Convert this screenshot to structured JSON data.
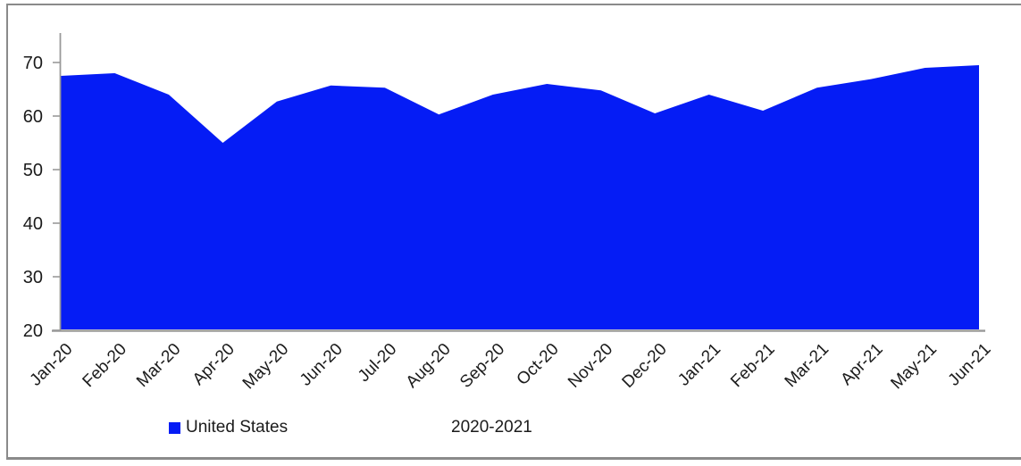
{
  "figure": {
    "background": "#ffffff",
    "border_color": "#8a8a8a"
  },
  "chart_data": {
    "type": "area",
    "title": "",
    "xlabel": "",
    "ylabel": "",
    "categories": [
      "Jan-20",
      "Feb-20",
      "Mar-20",
      "Apr-20",
      "May-20",
      "Jun-20",
      "Jul-20",
      "Aug-20",
      "Sep-20",
      "Oct-20",
      "Nov-20",
      "Dec-20",
      "Jan-21",
      "Feb-21",
      "Mar-21",
      "Apr-21",
      "May-21",
      "Jun-21"
    ],
    "series": [
      {
        "name": "United States",
        "values": [
          67.5,
          68,
          64,
          55,
          62.7,
          65.7,
          65.3,
          60.3,
          64,
          66,
          64.8,
          60.5,
          64,
          61,
          65.3,
          66.9,
          69,
          69.5
        ],
        "color": "#051cf5"
      }
    ],
    "ylim": [
      20,
      75.5
    ],
    "yticks": [
      20,
      30,
      40,
      50,
      60,
      70
    ],
    "grid": false,
    "legend_position": "bottom",
    "axis_color": "#999999",
    "tick_label_color": "#1b1b1b",
    "annotations": [
      "2020-2021"
    ]
  },
  "legend": {
    "series_label": "United States",
    "swatch_color": "#051cf5",
    "period_label": "2020-2021"
  }
}
